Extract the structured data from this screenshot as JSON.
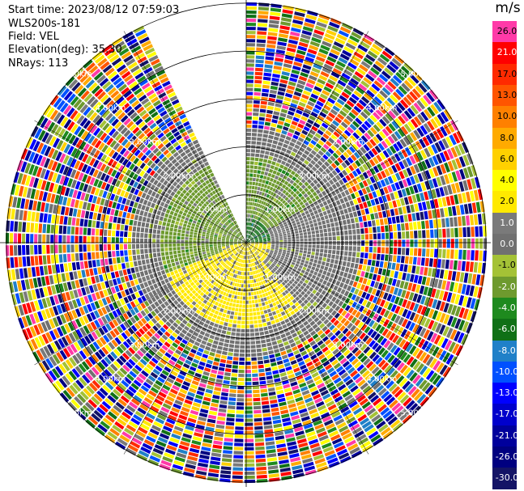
{
  "header": {
    "start_time": "Start time: 2023/08/12 07:59:03",
    "instrument": "WLS200s-181",
    "field": "Field: VEL",
    "elevation": "Elevation(deg): 35.30",
    "nrays": "NRays: 113"
  },
  "chart_data": {
    "type": "heatmap",
    "projection": "polar-ppi",
    "field": "VEL",
    "units": "m/s",
    "elevation_deg": 35.3,
    "n_rays": 113,
    "range_ring_labels": [
      "1.00km",
      "2.00km",
      "3.00km",
      "4.00km",
      "5.00km"
    ],
    "ring_ranges_km": [
      1,
      2,
      3,
      4,
      5
    ],
    "max_range_km": 5.1,
    "missing_sector_deg": [
      335,
      360
    ],
    "colorbar": {
      "title": "m/s",
      "ticks": [
        "26.0",
        "21.0",
        "17.0",
        "13.0",
        "10.0",
        "8.0",
        "6.0",
        "4.0",
        "2.0",
        "1.0",
        "0.0",
        "-1.0",
        "-2.0",
        "-4.0",
        "-6.0",
        "-8.0",
        "-10.0",
        "-13.0",
        "-17.0",
        "-21.0",
        "-26.0",
        "-30.0"
      ],
      "colors": [
        "#ff3aa8",
        "#ff0000",
        "#ff2a00",
        "#ff5500",
        "#ff8000",
        "#ffaa00",
        "#ffd000",
        "#ffff00",
        "#ffe900",
        "#7a7a7a",
        "#707070",
        "#a4c236",
        "#6e9a2e",
        "#1e8a1e",
        "#107016",
        "#2080c8",
        "#0050ff",
        "#0000ff",
        "#0000cc",
        "#00009c",
        "#000080",
        "#141466"
      ]
    },
    "regions": [
      {
        "range_km": [
          0.0,
          0.55
        ],
        "azimuth_deg": [
          0,
          90
        ],
        "velocity": -6.0
      },
      {
        "range_km": [
          0.0,
          0.55
        ],
        "azimuth_deg": [
          90,
          260
        ],
        "velocity": 1.5
      },
      {
        "range_km": [
          0.0,
          0.55
        ],
        "azimuth_deg": [
          260,
          335
        ],
        "velocity": -2.0
      },
      {
        "range_km": [
          0.55,
          1.8
        ],
        "azimuth_deg": [
          0,
          60
        ],
        "velocity": -2.5
      },
      {
        "range_km": [
          0.55,
          1.8
        ],
        "azimuth_deg": [
          60,
          140
        ],
        "velocity": 0.0
      },
      {
        "range_km": [
          0.55,
          1.8
        ],
        "azimuth_deg": [
          140,
          250
        ],
        "velocity": 2.0
      },
      {
        "range_km": [
          0.55,
          1.8
        ],
        "azimuth_deg": [
          250,
          335
        ],
        "velocity": -2.0
      },
      {
        "range_km": [
          1.8,
          2.4
        ],
        "azimuth_deg": [
          0,
          335
        ],
        "velocity": 0.0
      },
      {
        "range_km": [
          2.4,
          5.1
        ],
        "azimuth_deg": [
          0,
          335
        ],
        "velocity": null
      }
    ]
  }
}
